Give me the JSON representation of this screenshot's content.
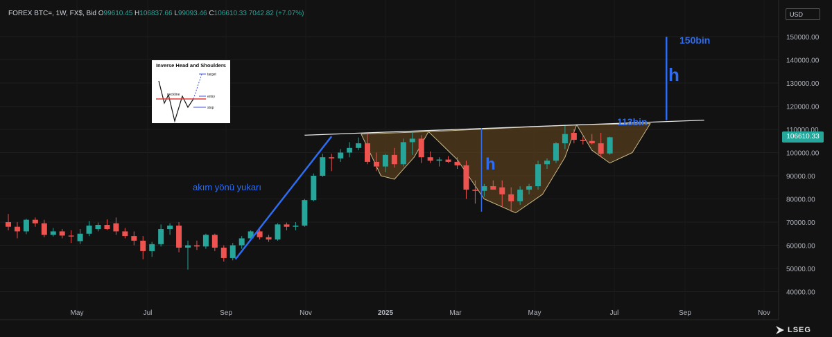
{
  "header": {
    "symbol": "FOREX BTC=, 1W, FX$, Bid",
    "open_label": "O",
    "open": "99610.45",
    "high_label": "H",
    "high": "106837.66",
    "low_label": "L",
    "low": "99093.46",
    "close_label": "C",
    "close": "106610.33",
    "change": "7042.82 (+7.07%)"
  },
  "currency": "USD",
  "last_price": "106610.33",
  "brand": "LSEG",
  "colors": {
    "up": "#26a69a",
    "down": "#ef5350",
    "annotation_blue": "#2e6cf0",
    "pattern_fill": "#6b4a20",
    "neckline": "#e8e8e8"
  },
  "inset": {
    "title": "Inverse Head and Shoulders",
    "target": "target",
    "neckline": "neckline",
    "entry": "entry",
    "stop": "stop"
  },
  "annotations": {
    "trend_label": "akım yönü yukarı",
    "h_label_left": "h",
    "h_label_right": "h",
    "target_label": "150bin",
    "neckline_label": "113bin"
  },
  "chart_data": {
    "type": "candlestick",
    "x_tick_labels": [
      "May",
      "Jul",
      "Sep",
      "Nov",
      "2025",
      "Mar",
      "May",
      "Jul",
      "Sep",
      "Nov"
    ],
    "y_tick_labels": [
      "40000.00",
      "50000.00",
      "60000.00",
      "70000.00",
      "80000.00",
      "90000.00",
      "100000.00",
      "110000.00",
      "120000.00",
      "130000.00",
      "140000.00",
      "150000.00"
    ],
    "y_ticks": [
      40000,
      50000,
      60000,
      70000,
      80000,
      90000,
      100000,
      110000,
      120000,
      130000,
      140000,
      150000
    ],
    "ylim": [
      33000,
      158000
    ],
    "candles": [
      {
        "o": 70000,
        "h": 73500,
        "l": 66500,
        "c": 68000
      },
      {
        "o": 68000,
        "h": 70000,
        "l": 63000,
        "c": 66000
      },
      {
        "o": 66000,
        "h": 71500,
        "l": 64800,
        "c": 71000
      },
      {
        "o": 71000,
        "h": 72000,
        "l": 68000,
        "c": 69500
      },
      {
        "o": 69500,
        "h": 71000,
        "l": 63500,
        "c": 64500
      },
      {
        "o": 64500,
        "h": 67500,
        "l": 63800,
        "c": 66000
      },
      {
        "o": 66000,
        "h": 67000,
        "l": 63000,
        "c": 64200
      },
      {
        "o": 64200,
        "h": 66500,
        "l": 61000,
        "c": 63800
      },
      {
        "o": 61800,
        "h": 67000,
        "l": 60500,
        "c": 65000
      },
      {
        "o": 65000,
        "h": 70500,
        "l": 64000,
        "c": 68500
      },
      {
        "o": 67000,
        "h": 69800,
        "l": 66000,
        "c": 68800
      },
      {
        "o": 68800,
        "h": 71200,
        "l": 66600,
        "c": 67000
      },
      {
        "o": 69500,
        "h": 72000,
        "l": 64500,
        "c": 66000
      },
      {
        "o": 66000,
        "h": 67500,
        "l": 63000,
        "c": 64000
      },
      {
        "o": 64000,
        "h": 66000,
        "l": 60000,
        "c": 62000
      },
      {
        "o": 62000,
        "h": 64000,
        "l": 54000,
        "c": 57500
      },
      {
        "o": 57500,
        "h": 61500,
        "l": 55000,
        "c": 60500
      },
      {
        "o": 60500,
        "h": 69000,
        "l": 59500,
        "c": 67000
      },
      {
        "o": 67000,
        "h": 69500,
        "l": 64500,
        "c": 68500
      },
      {
        "o": 68500,
        "h": 70000,
        "l": 57000,
        "c": 59000
      },
      {
        "o": 59000,
        "h": 62000,
        "l": 49500,
        "c": 60000
      },
      {
        "o": 60000,
        "h": 62000,
        "l": 58000,
        "c": 59500
      },
      {
        "o": 59500,
        "h": 65000,
        "l": 58500,
        "c": 64500
      },
      {
        "o": 64500,
        "h": 65000,
        "l": 57500,
        "c": 59000
      },
      {
        "o": 59000,
        "h": 60000,
        "l": 53000,
        "c": 54500
      },
      {
        "o": 54500,
        "h": 61000,
        "l": 53500,
        "c": 60000
      },
      {
        "o": 60000,
        "h": 64000,
        "l": 58500,
        "c": 63000
      },
      {
        "o": 63000,
        "h": 66500,
        "l": 62000,
        "c": 66000
      },
      {
        "o": 66000,
        "h": 67000,
        "l": 62500,
        "c": 63500
      },
      {
        "o": 63500,
        "h": 64500,
        "l": 61500,
        "c": 62500
      },
      {
        "o": 62500,
        "h": 69500,
        "l": 62000,
        "c": 69000
      },
      {
        "o": 69000,
        "h": 69800,
        "l": 66500,
        "c": 68000
      },
      {
        "o": 68000,
        "h": 70000,
        "l": 66500,
        "c": 68500
      },
      {
        "o": 68500,
        "h": 80000,
        "l": 68000,
        "c": 79500
      },
      {
        "o": 79500,
        "h": 91000,
        "l": 79000,
        "c": 90000
      },
      {
        "o": 90000,
        "h": 99500,
        "l": 89500,
        "c": 98000
      },
      {
        "o": 98000,
        "h": 99500,
        "l": 92000,
        "c": 97500
      },
      {
        "o": 97500,
        "h": 101500,
        "l": 96000,
        "c": 100000
      },
      {
        "o": 100000,
        "h": 104500,
        "l": 98000,
        "c": 102000
      },
      {
        "o": 102000,
        "h": 106500,
        "l": 101000,
        "c": 104000
      },
      {
        "o": 104000,
        "h": 108500,
        "l": 95000,
        "c": 96000
      },
      {
        "o": 96000,
        "h": 100000,
        "l": 92000,
        "c": 94000
      },
      {
        "o": 94000,
        "h": 99500,
        "l": 91500,
        "c": 99000
      },
      {
        "o": 99000,
        "h": 102000,
        "l": 93500,
        "c": 95000
      },
      {
        "o": 95000,
        "h": 106000,
        "l": 94000,
        "c": 104500
      },
      {
        "o": 104500,
        "h": 109000,
        "l": 99000,
        "c": 106000
      },
      {
        "o": 106000,
        "h": 107500,
        "l": 95500,
        "c": 98000
      },
      {
        "o": 98000,
        "h": 100500,
        "l": 95500,
        "c": 96500
      },
      {
        "o": 96500,
        "h": 98000,
        "l": 94000,
        "c": 97000
      },
      {
        "o": 97000,
        "h": 98500,
        "l": 95500,
        "c": 96000
      },
      {
        "o": 96000,
        "h": 98000,
        "l": 93000,
        "c": 94500
      },
      {
        "o": 94500,
        "h": 96500,
        "l": 80000,
        "c": 84000
      },
      {
        "o": 84000,
        "h": 88000,
        "l": 78000,
        "c": 83500
      },
      {
        "o": 83500,
        "h": 86500,
        "l": 81000,
        "c": 85500
      },
      {
        "o": 85500,
        "h": 88000,
        "l": 84000,
        "c": 84000
      },
      {
        "o": 85000,
        "h": 88000,
        "l": 76500,
        "c": 82000
      },
      {
        "o": 82000,
        "h": 85000,
        "l": 74500,
        "c": 79000
      },
      {
        "o": 79000,
        "h": 85500,
        "l": 77500,
        "c": 84000
      },
      {
        "o": 84000,
        "h": 86500,
        "l": 82000,
        "c": 85500
      },
      {
        "o": 85500,
        "h": 96500,
        "l": 84000,
        "c": 95000
      },
      {
        "o": 95000,
        "h": 97500,
        "l": 93000,
        "c": 96500
      },
      {
        "o": 96500,
        "h": 104500,
        "l": 95500,
        "c": 104000
      },
      {
        "o": 104000,
        "h": 112000,
        "l": 101500,
        "c": 108000
      },
      {
        "o": 108500,
        "h": 110000,
        "l": 104000,
        "c": 105500
      },
      {
        "o": 105500,
        "h": 107000,
        "l": 103500,
        "c": 105000
      },
      {
        "o": 105000,
        "h": 108000,
        "l": 103500,
        "c": 104000
      },
      {
        "o": 104000,
        "h": 108500,
        "l": 98000,
        "c": 99500
      },
      {
        "o": 99610.45,
        "h": 106837.66,
        "l": 99093.46,
        "c": 106610.33
      }
    ]
  }
}
